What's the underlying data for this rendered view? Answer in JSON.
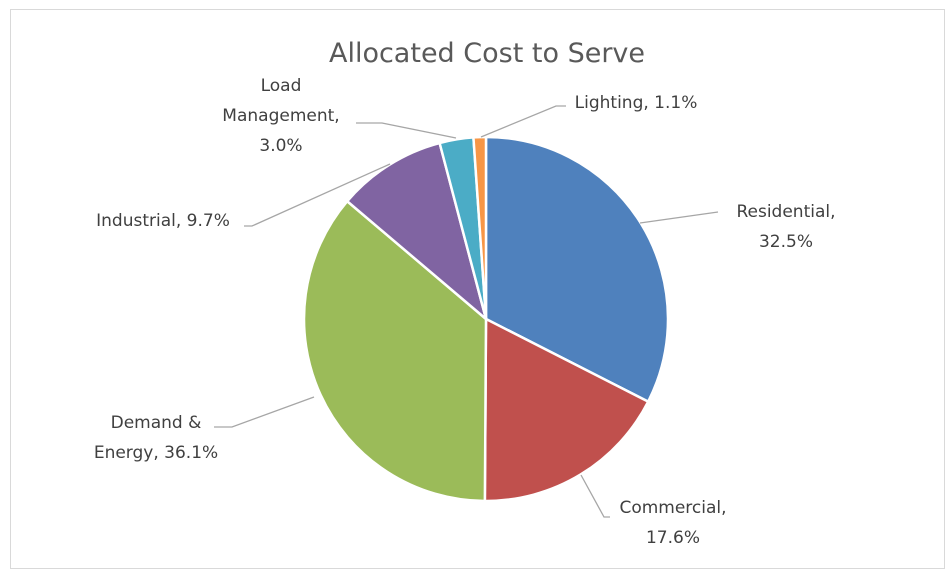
{
  "chart_data": {
    "type": "pie",
    "title": "Allocated Cost to Serve",
    "slices": [
      {
        "label": "Residential",
        "value": 32.5,
        "color": "#4f81bd",
        "label_lines": [
          "Residential,",
          "32.5%"
        ]
      },
      {
        "label": "Commercial",
        "value": 17.6,
        "color": "#c0504d",
        "label_lines": [
          "Commercial,",
          "17.6%"
        ]
      },
      {
        "label": "Demand & Energy",
        "value": 36.1,
        "color": "#9bbb59",
        "label_lines": [
          "Demand &",
          "Energy, 36.1%"
        ]
      },
      {
        "label": "Industrial",
        "value": 9.7,
        "color": "#8064a2",
        "label_lines": [
          "Industrial, 9.7%"
        ]
      },
      {
        "label": "Load Management",
        "value": 3.0,
        "color": "#4bacc6",
        "label_lines": [
          "Load",
          "Management,",
          "3.0%"
        ]
      },
      {
        "label": "Lighting",
        "value": 1.1,
        "color": "#f79646",
        "label_lines": [
          "Lighting, 1.1%"
        ]
      }
    ],
    "start_angle": "12 o'clock",
    "direction": "clockwise",
    "legend": "none",
    "data_labels": "outside with leader lines"
  }
}
